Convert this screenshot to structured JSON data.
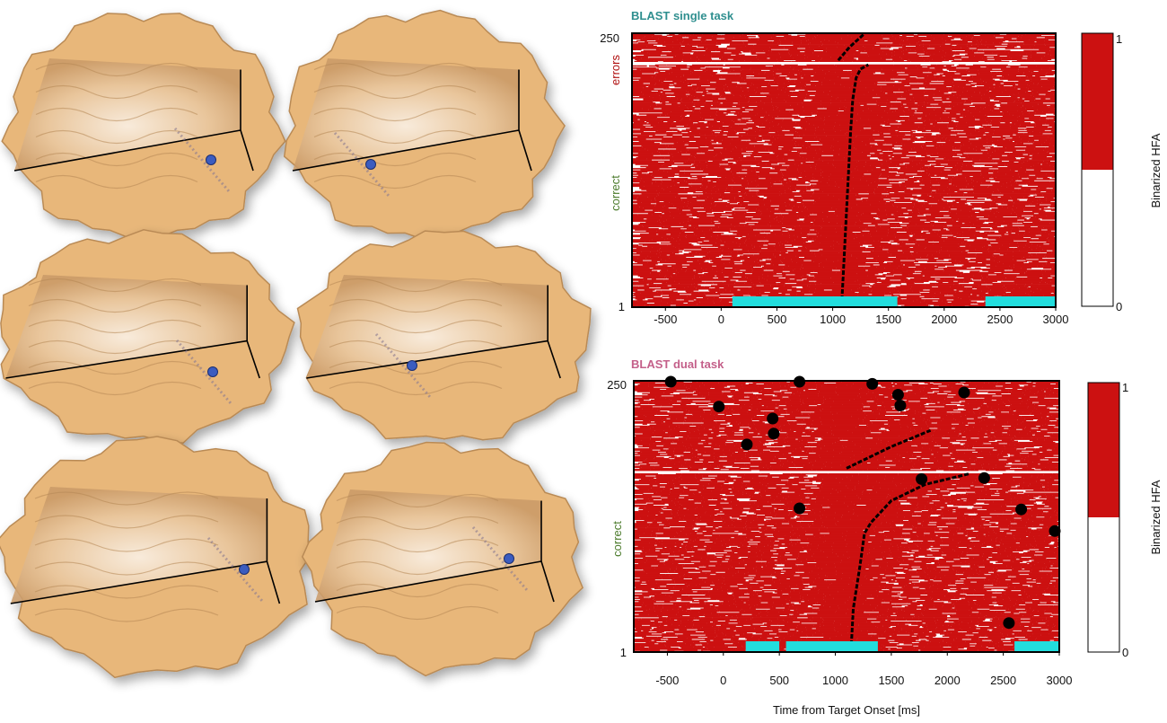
{
  "colors": {
    "raster_red": "#cc1111",
    "raster_white": "#ffffff",
    "cyan_bar": "#22dddd",
    "brain_tan": "#e8b77a",
    "electrode_blue": "#3a5bbf",
    "title_single": "#2f8f8f",
    "title_dual": "#c4608a",
    "errors_label": "#b01010",
    "correct_label": "#4a7a2a"
  },
  "brains": {
    "panel_count": 6,
    "icon": "brain-cutaway-icon"
  },
  "chart_data": [
    {
      "type": "heatmap",
      "title": "BLAST single task",
      "xlabel": "",
      "ylabel": "",
      "x_ticks": [
        -500,
        0,
        500,
        1000,
        1500,
        2000,
        2500,
        3000
      ],
      "xlim": [
        -800,
        3000
      ],
      "y_ticks": [
        "1",
        "250"
      ],
      "ylim": [
        1,
        250
      ],
      "row_groups": [
        {
          "label": "correct",
          "from": 1,
          "to": 222
        },
        {
          "label": "errors",
          "from": 224,
          "to": 250
        }
      ],
      "reaction_time_curve": [
        {
          "trial": 1,
          "ms": 1080
        },
        {
          "trial": 40,
          "ms": 1100
        },
        {
          "trial": 80,
          "ms": 1120
        },
        {
          "trial": 120,
          "ms": 1140
        },
        {
          "trial": 160,
          "ms": 1160
        },
        {
          "trial": 190,
          "ms": 1180
        },
        {
          "trial": 210,
          "ms": 1210
        },
        {
          "trial": 218,
          "ms": 1250
        },
        {
          "trial": 222,
          "ms": 1320
        },
        {
          "trial": 226,
          "ms": 1050
        },
        {
          "trial": 238,
          "ms": 1150
        },
        {
          "trial": 250,
          "ms": 1280
        }
      ],
      "significance_bars": [
        {
          "from_ms": 100,
          "to_ms": 1580
        },
        {
          "from_ms": 2370,
          "to_ms": 3000
        }
      ],
      "colorbar": {
        "label": "Binarized HFA",
        "ticks": [
          "0",
          "1"
        ]
      }
    },
    {
      "type": "heatmap",
      "title": "BLAST dual task",
      "xlabel": "Time from Target Onset [ms]",
      "ylabel": "",
      "x_ticks": [
        -500,
        0,
        500,
        1000,
        1500,
        2000,
        2500,
        3000
      ],
      "xlim": [
        -800,
        3000
      ],
      "y_ticks": [
        "1",
        "250"
      ],
      "ylim": [
        1,
        250
      ],
      "row_groups": [
        {
          "label": "correct",
          "from": 1,
          "to": 165
        },
        {
          "label": "",
          "from": 167,
          "to": 250
        }
      ],
      "reaction_time_curve": [
        {
          "trial": 1,
          "ms": 1140
        },
        {
          "trial": 40,
          "ms": 1160
        },
        {
          "trial": 80,
          "ms": 1220
        },
        {
          "trial": 110,
          "ms": 1260
        },
        {
          "trial": 120,
          "ms": 1320
        },
        {
          "trial": 140,
          "ms": 1500
        },
        {
          "trial": 155,
          "ms": 1800
        },
        {
          "trial": 165,
          "ms": 2200
        },
        {
          "trial": 170,
          "ms": 1100
        },
        {
          "trial": 190,
          "ms": 1500
        },
        {
          "trial": 205,
          "ms": 1850
        }
      ],
      "outlier_rt_points": [
        {
          "trial": 250,
          "ms": -470
        },
        {
          "trial": 250,
          "ms": 680
        },
        {
          "trial": 248,
          "ms": 1330
        },
        {
          "trial": 240,
          "ms": 2150
        },
        {
          "trial": 238,
          "ms": 1560
        },
        {
          "trial": 228,
          "ms": 1580
        },
        {
          "trial": 227,
          "ms": -40
        },
        {
          "trial": 216,
          "ms": 440
        },
        {
          "trial": 202,
          "ms": 450
        },
        {
          "trial": 192,
          "ms": 210
        },
        {
          "trial": 160,
          "ms": 1770
        },
        {
          "trial": 161,
          "ms": 2330
        },
        {
          "trial": 133,
          "ms": 680
        },
        {
          "trial": 132,
          "ms": 2660
        },
        {
          "trial": 112,
          "ms": 2960
        },
        {
          "trial": 27,
          "ms": 2550
        }
      ],
      "significance_bars": [
        {
          "from_ms": 200,
          "to_ms": 500
        },
        {
          "from_ms": 560,
          "to_ms": 1380
        },
        {
          "from_ms": 2600,
          "to_ms": 3000
        }
      ],
      "colorbar": {
        "label": "Binarized HFA",
        "ticks": [
          "0",
          "1"
        ]
      }
    }
  ]
}
